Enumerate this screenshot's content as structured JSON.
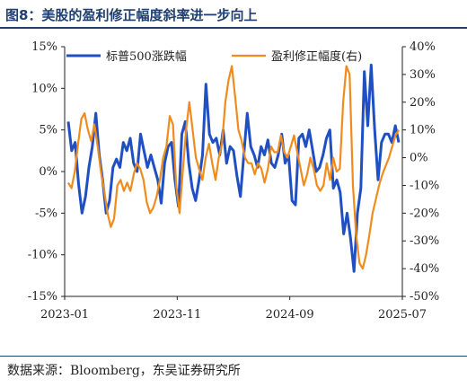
{
  "title": "图8：美股的盈利修正幅度斜率进一步向上",
  "source": "数据来源：Bloomberg，东吴证券研究所",
  "chart_data": {
    "type": "line",
    "x_ticks": [
      "2023-01",
      "2023-11",
      "2024-09",
      "2025-07"
    ],
    "y_left": {
      "range": [
        -15,
        15
      ],
      "ticks": [
        "15%",
        "10%",
        "5%",
        "0%",
        "-5%",
        "-10%",
        "-15%"
      ]
    },
    "y_right": {
      "range": [
        -50,
        40
      ],
      "ticks": [
        "40%",
        "30%",
        "20%",
        "10%",
        "0%",
        "-10%",
        "-20%",
        "-30%",
        "-40%",
        "-50%"
      ]
    },
    "grid": false,
    "legend_position": "top",
    "series": [
      {
        "name": "标普500涨跌幅",
        "axis": "left",
        "color": "#1f4fc2",
        "values": [
          6.0,
          2.5,
          3.5,
          -1.5,
          -5.0,
          -3.0,
          0.5,
          3.0,
          7.0,
          2.0,
          -1.0,
          -5.0,
          -3.5,
          0.5,
          1.5,
          0.5,
          3.5,
          2.5,
          4.0,
          1.0,
          0.0,
          4.5,
          2.5,
          0.5,
          2.0,
          0.5,
          -1.0,
          -3.8,
          1.0,
          3.0,
          3.5,
          -1.0,
          -4.2,
          4.5,
          6.0,
          1.0,
          -2.0,
          -3.5,
          -1.0,
          2.0,
          10.5,
          4.5,
          3.5,
          4.0,
          2.0,
          5.0,
          1.0,
          3.0,
          2.5,
          -0.5,
          -3.0,
          2.0,
          7.0,
          3.0,
          2.0,
          0.5,
          3.0,
          2.0,
          3.8,
          1.0,
          0.5,
          2.0,
          4.5,
          1.0,
          2.0,
          -3.5,
          -4.0,
          4.0,
          4.5,
          3.0,
          5.0,
          2.5,
          0.0,
          0.5,
          2.0,
          4.0,
          5.0,
          -2.0,
          -1.0,
          -2.5,
          -7.5,
          -5.0,
          -8.0,
          -12.0,
          -5.0,
          -2.0,
          12.0,
          5.5,
          12.8,
          5.0,
          -1.0,
          3.5,
          4.5,
          4.5,
          3.5,
          5.5,
          3.5
        ]
      },
      {
        "name": "盈利修正幅度(右)",
        "axis": "right",
        "color": "#f08c1e",
        "values": [
          -9,
          -11,
          -5,
          5,
          14,
          16,
          10,
          6,
          12,
          4,
          -5,
          -12,
          -20,
          -25,
          -22,
          -10,
          -8,
          -12,
          -9,
          -12,
          -6,
          -2,
          -4,
          -8,
          -16,
          -20,
          -18,
          -14,
          -8,
          0,
          4,
          15,
          12,
          -10,
          -20,
          -5,
          10,
          20,
          10,
          0,
          -4,
          -8,
          0,
          5,
          -2,
          -8,
          0,
          5,
          20,
          28,
          33,
          22,
          10,
          6,
          0,
          -2,
          -2,
          -6,
          -2,
          -4,
          -9,
          -4,
          4,
          2,
          2,
          8,
          2,
          0,
          4,
          8,
          2,
          -4,
          -10,
          -6,
          0,
          -4,
          -10,
          -12,
          -10,
          -2,
          -8,
          0,
          -5,
          -4,
          20,
          33,
          30,
          -10,
          -28,
          -38,
          -40,
          -35,
          -28,
          -20,
          -15,
          -10,
          -6,
          -3,
          0,
          4,
          8,
          10
        ]
      }
    ]
  }
}
